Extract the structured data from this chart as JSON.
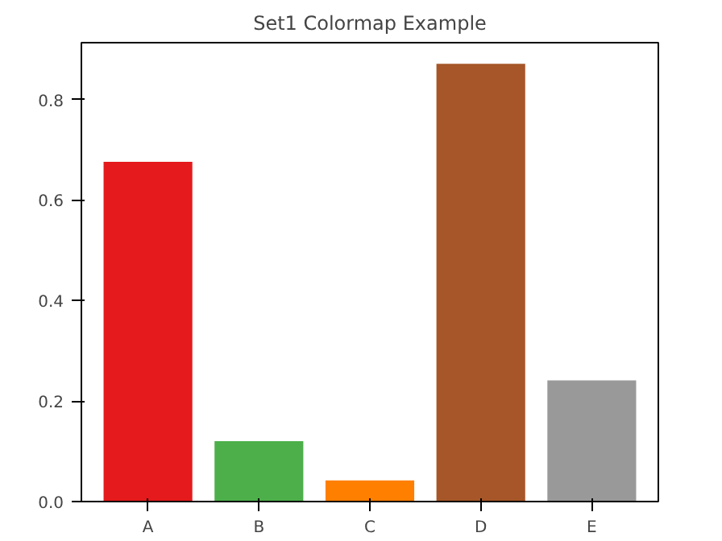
{
  "chart_data": {
    "type": "bar",
    "title": "Set1 Colormap Example",
    "categories": [
      "A",
      "B",
      "C",
      "D",
      "E"
    ],
    "values": [
      0.676,
      0.12,
      0.042,
      0.871,
      0.241
    ],
    "colors": [
      "#e41a1c",
      "#4daf4a",
      "#ff7f00",
      "#a65628",
      "#999999"
    ],
    "ylim": [
      0,
      0.913
    ],
    "yticks": [
      {
        "value": 0,
        "label": "0.0"
      },
      {
        "value": 0.2,
        "label": "0.2"
      },
      {
        "value": 0.4,
        "label": "0.4"
      },
      {
        "value": 0.6,
        "label": "0.6"
      },
      {
        "value": 0.8,
        "label": "0.8"
      }
    ],
    "grid": false
  }
}
